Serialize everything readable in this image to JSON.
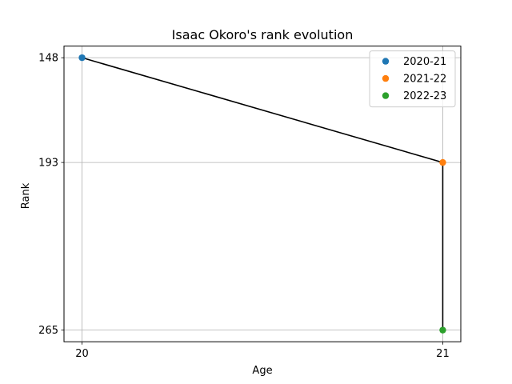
{
  "chart_data": {
    "type": "line",
    "title": "Isaac Okoro's rank evolution",
    "xlabel": "Age",
    "ylabel": "Rank",
    "x_ticks": [
      20,
      21
    ],
    "y_ticks": [
      148,
      193,
      265
    ],
    "xlim": [
      19.95,
      21.05
    ],
    "ylim": [
      270,
      143
    ],
    "y_inverted": true,
    "grid": true,
    "legend_position": "top-right",
    "line_color": "#000000",
    "series": [
      {
        "name": "2020-21",
        "x": 20,
        "y": 148,
        "color": "#1f77b4"
      },
      {
        "name": "2021-22",
        "x": 21,
        "y": 193,
        "color": "#ff7f0e"
      },
      {
        "name": "2022-23",
        "x": 21,
        "y": 265,
        "color": "#2ca02c"
      }
    ]
  }
}
